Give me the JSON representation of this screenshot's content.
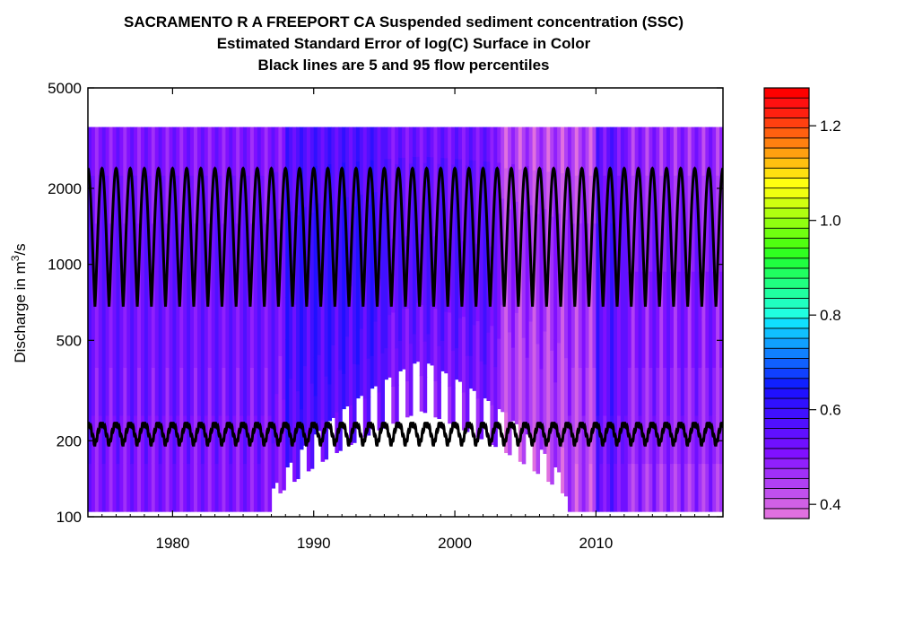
{
  "chart_data": {
    "type": "heatmap",
    "title_lines": [
      "SACRAMENTO R A FREEPORT CA    Suspended sediment concentration (SSC)",
      "Estimated Standard Error of log(C) Surface in Color",
      "Black lines are 5 and 95 flow percentiles"
    ],
    "ylabel_prefix": "Discharge in m",
    "ylabel_sup": "3",
    "ylabel_suffix": "/s",
    "xlim": [
      1974,
      2019
    ],
    "ylim": [
      100,
      5000
    ],
    "y_scale": "log",
    "x_ticks": [
      1980,
      1990,
      2000,
      2010
    ],
    "y_ticks": [
      100,
      200,
      500,
      1000,
      2000,
      5000
    ],
    "surface_q_range": [
      105,
      3500
    ],
    "surface_x_range": [
      1974,
      2019
    ],
    "surface_gaps": [
      {
        "x_start": 1987.0,
        "x_end": 2008.0,
        "q_low_max": 420,
        "desc": "no estimate at low flows"
      }
    ],
    "p95_line": {
      "min": 680,
      "max": 2400,
      "period_years": 1
    },
    "p5_line": {
      "min": 192,
      "max": 235,
      "period_years": 1
    },
    "line_color": "#000000",
    "colorbar": {
      "min": 0.37,
      "max": 1.28,
      "ticks": [
        0.4,
        0.6,
        0.8,
        1.0,
        1.2
      ],
      "tick_labels": [
        "0.4",
        "0.6",
        "0.8",
        "1.0",
        "1.2"
      ],
      "colors": [
        "#e070e0",
        "#d060e6",
        "#c050ee",
        "#b040f4",
        "#a030f8",
        "#9020fc",
        "#8010ff",
        "#7010ff",
        "#6010ff",
        "#5010ff",
        "#4010ff",
        "#3010ff",
        "#2010ff",
        "#1020ff",
        "#1040ff",
        "#1060ff",
        "#1080ff",
        "#10a0ff",
        "#10c0ff",
        "#10e0ff",
        "#20ffe0",
        "#20ffc0",
        "#20ffa0",
        "#20ff80",
        "#20ff60",
        "#20ff40",
        "#30ff20",
        "#50ff10",
        "#70ff10",
        "#90ff10",
        "#b0ff10",
        "#d0ff10",
        "#f0ff10",
        "#ffff10",
        "#ffe010",
        "#ffc010",
        "#ffa010",
        "#ff8010",
        "#ff6010",
        "#ff4010",
        "#ff2010",
        "#ff1010",
        "#ff0000"
      ]
    }
  }
}
